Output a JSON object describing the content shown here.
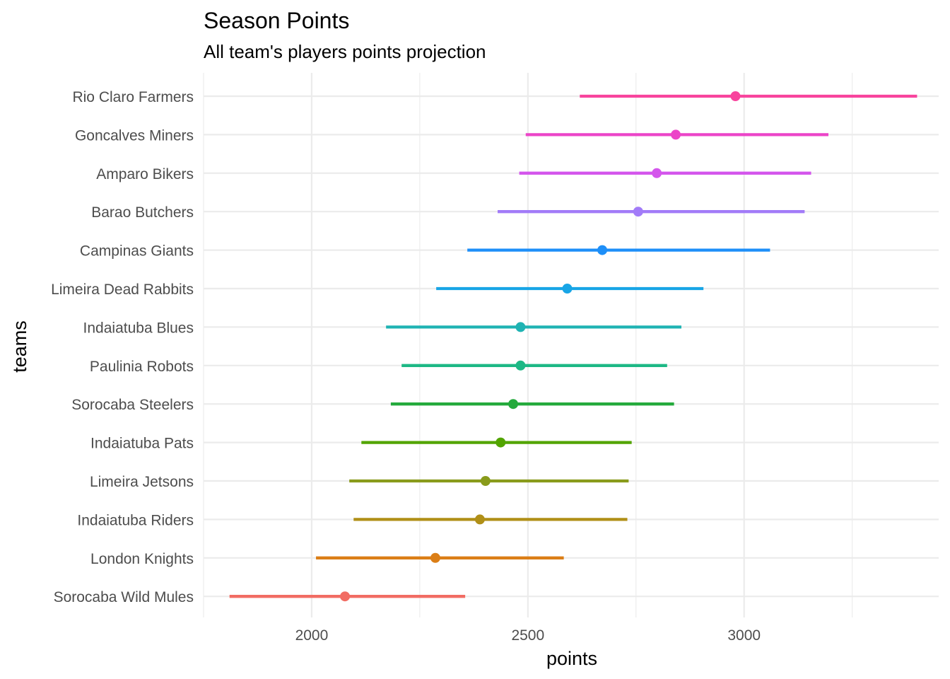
{
  "chart_data": {
    "type": "dot-range",
    "title": "Season Points",
    "subtitle": "All team's players points projection",
    "xlabel": "points",
    "ylabel": "teams",
    "xlim": [
      1750,
      3450
    ],
    "x_ticks": [
      2000,
      2500,
      3000
    ],
    "x_tick_labels": [
      "2000",
      "2500",
      "3000"
    ],
    "x_minor": [
      1750,
      2250,
      2750,
      3250
    ],
    "grid": true,
    "legend": "none",
    "teams": [
      {
        "name": "Rio Claro Farmers",
        "low": 2620,
        "mean": 2980,
        "high": 3400,
        "color": "#F8449D"
      },
      {
        "name": "Goncalves Miners",
        "low": 2495,
        "mean": 2842,
        "high": 3195,
        "color": "#EC44C8"
      },
      {
        "name": "Amparo Bikers",
        "low": 2480,
        "mean": 2798,
        "high": 3155,
        "color": "#D456EC"
      },
      {
        "name": "Barao Butchers",
        "low": 2430,
        "mean": 2755,
        "high": 3140,
        "color": "#A27BF8"
      },
      {
        "name": "Campinas Giants",
        "low": 2360,
        "mean": 2672,
        "high": 3060,
        "color": "#1E8FF8"
      },
      {
        "name": "Limeira Dead Rabbits",
        "low": 2288,
        "mean": 2591,
        "high": 2906,
        "color": "#18A5E6"
      },
      {
        "name": "Indaiatuba Blues",
        "low": 2172,
        "mean": 2483,
        "high": 2855,
        "color": "#1FB3B3"
      },
      {
        "name": "Paulinia Robots",
        "low": 2208,
        "mean": 2483,
        "high": 2822,
        "color": "#1DB885"
      },
      {
        "name": "Sorocaba Steelers",
        "low": 2183,
        "mean": 2466,
        "high": 2838,
        "color": "#24AA3C"
      },
      {
        "name": "Indaiatuba Pats",
        "low": 2115,
        "mean": 2437,
        "high": 2740,
        "color": "#52A400"
      },
      {
        "name": "Limeira Jetsons",
        "low": 2087,
        "mean": 2402,
        "high": 2733,
        "color": "#899B1B"
      },
      {
        "name": "Indaiatuba Riders",
        "low": 2097,
        "mean": 2389,
        "high": 2730,
        "color": "#B08F17"
      },
      {
        "name": "London Knights",
        "low": 2010,
        "mean": 2286,
        "high": 2583,
        "color": "#DB7E16"
      },
      {
        "name": "Sorocaba Wild Mules",
        "low": 1810,
        "mean": 2077,
        "high": 2355,
        "color": "#F16C63"
      }
    ]
  }
}
